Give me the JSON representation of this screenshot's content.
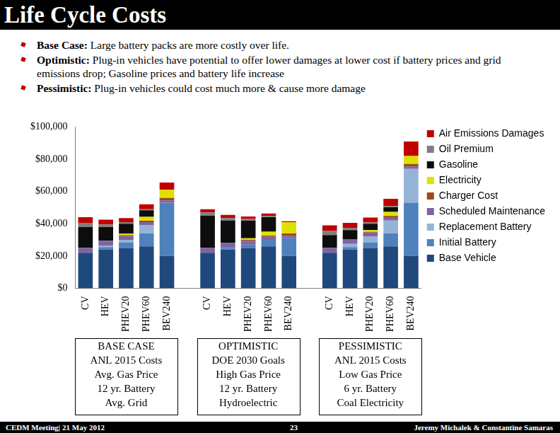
{
  "header": {
    "title": "Life Cycle Costs"
  },
  "bullets": [
    {
      "lead": "Base Case:",
      "text": "Large battery packs are more costly over life."
    },
    {
      "lead": "Optimistic:",
      "text": "Plug-in vehicles have potential to offer lower damages at lower cost if battery prices and grid emissions drop; Gasoline prices and battery life increase"
    },
    {
      "lead": "Pessimistic:",
      "text": "Plug-in vehicles could cost much more & cause more damage"
    }
  ],
  "footer": {
    "left": "CEDM Meeting| 21 May 2012",
    "center": "23",
    "right": "Jeremy Michalek & Constantine Samaras"
  },
  "chart_data": {
    "type": "bar",
    "stacked": true,
    "grid": false,
    "legend": "right",
    "categories": [
      "CV",
      "HEV",
      "PHEV20",
      "PHEV60",
      "BEV240",
      null,
      "CV",
      "HEV",
      "PHEV20",
      "PHEV60",
      "BEV240",
      null,
      "CV",
      "HEV",
      "PHEV20",
      "PHEV60",
      "BEV240"
    ],
    "groups": [
      [
        "BASE CASE",
        "ANL 2015 Costs",
        "Avg. Gas Price",
        "12 yr. Battery",
        "Avg. Grid"
      ],
      [
        "OPTIMISTIC",
        "DOE 2030 Goals",
        "High Gas Price",
        "12 yr. Battery",
        "Hydroelectric"
      ],
      [
        "PESSIMISTIC",
        "ANL 2015 Costs",
        "Low Gas Price",
        "6 yr. Battery",
        "Coal Electricity"
      ]
    ],
    "ylim": [
      0,
      100000
    ],
    "yticks": [
      {
        "value": 0,
        "label": "$0"
      },
      {
        "value": 20000,
        "label": "$20,000"
      },
      {
        "value": 40000,
        "label": "$40,000"
      },
      {
        "value": 60000,
        "label": "$60,000"
      },
      {
        "value": 80000,
        "label": "$80,000"
      },
      {
        "value": 100000,
        "label": "$100,000"
      }
    ],
    "series": [
      {
        "name": "Base Vehicle",
        "color": "#1f497d",
        "values": [
          22000,
          24000,
          25000,
          26000,
          20000,
          null,
          22000,
          24000,
          25000,
          26000,
          20000,
          null,
          22000,
          24000,
          25000,
          26000,
          20000
        ]
      },
      {
        "name": "Initial Battery",
        "color": "#4f81bd",
        "values": [
          0,
          1500,
          3500,
          8000,
          33000,
          null,
          0,
          1000,
          2000,
          4000,
          11000,
          null,
          0,
          1500,
          3500,
          8000,
          33000
        ]
      },
      {
        "name": "Replacement Battery",
        "color": "#95b3d7",
        "values": [
          0,
          1000,
          1500,
          5000,
          0,
          null,
          0,
          0,
          0,
          0,
          0,
          null,
          0,
          2000,
          3500,
          8000,
          21000
        ]
      },
      {
        "name": "Scheduled Maintenance",
        "color": "#8064a2",
        "values": [
          3000,
          3000,
          2500,
          2000,
          1500,
          null,
          3000,
          3000,
          2500,
          2000,
          1500,
          null,
          3000,
          3000,
          2500,
          2000,
          1500
        ]
      },
      {
        "name": "Charger Cost",
        "color": "#9c4a1a",
        "values": [
          0,
          0,
          500,
          800,
          1500,
          null,
          0,
          0,
          500,
          600,
          1500,
          null,
          0,
          0,
          500,
          800,
          1500
        ]
      },
      {
        "name": "Electricity",
        "color": "#e0e000",
        "values": [
          0,
          0,
          1000,
          2500,
          5000,
          null,
          0,
          0,
          1000,
          2500,
          7000,
          null,
          0,
          0,
          1000,
          2500,
          5000
        ]
      },
      {
        "name": "Gasoline",
        "color": "#0d0d0d",
        "values": [
          13000,
          8500,
          6000,
          4000,
          0,
          null,
          20000,
          14000,
          11000,
          9000,
          0,
          null,
          8000,
          5500,
          4000,
          3000,
          0
        ]
      },
      {
        "name": "Oil Premium",
        "color": "#7f7f7f",
        "values": [
          2500,
          1500,
          1000,
          700,
          0,
          null,
          2000,
          1500,
          1000,
          700,
          0,
          null,
          2500,
          1500,
          800,
          600,
          0
        ]
      },
      {
        "name": "Air Emissions Damages",
        "color": "#c00000",
        "values": [
          3500,
          3000,
          2500,
          3000,
          4500,
          null,
          2000,
          2000,
          1500,
          1500,
          500,
          null,
          3500,
          3000,
          3000,
          4500,
          9000
        ]
      }
    ]
  }
}
